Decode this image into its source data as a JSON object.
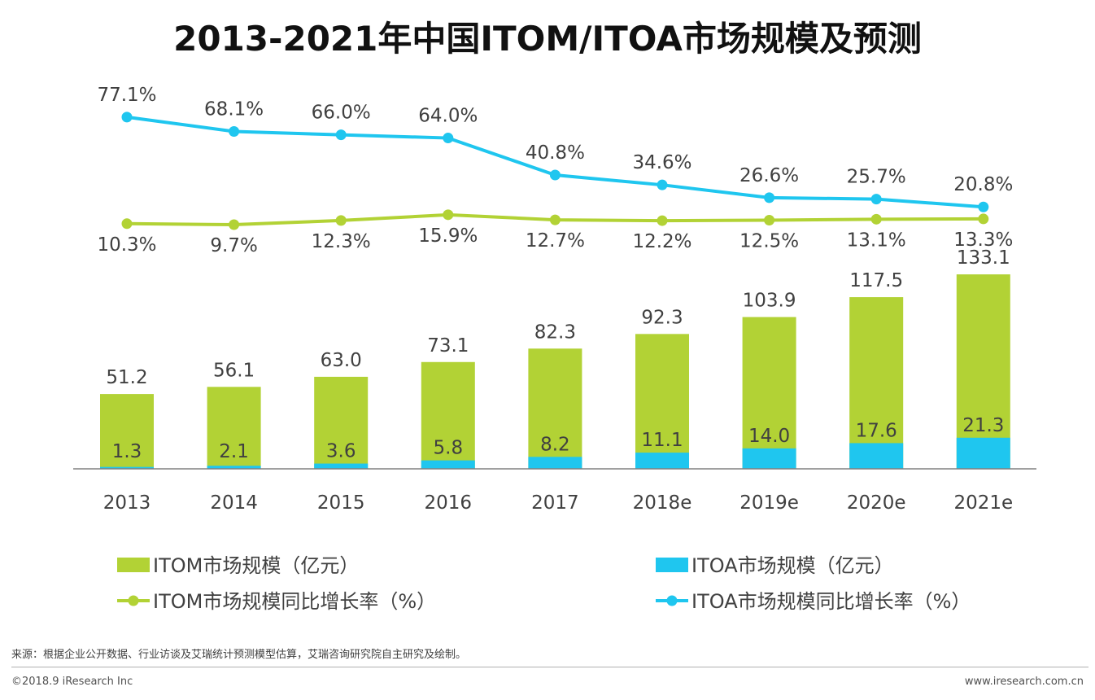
{
  "title": "2013-2021年中国ITOM/ITOA市场规模及预测",
  "source": "来源：根据企业公开数据、行业访谈及艾瑞统计预测模型估算，艾瑞咨询研究院自主研究及绘制。",
  "copyright": "©2018.9 iResearch Inc",
  "website": "www.iresearch.com.cn",
  "colors": {
    "itom": "#b2d235",
    "itoa": "#1fc6ef",
    "axis": "#808080",
    "text": "#404040"
  },
  "chart_data": {
    "type": "bar",
    "categories": [
      "2013",
      "2014",
      "2015",
      "2016",
      "2017",
      "2018e",
      "2019e",
      "2020e",
      "2021e"
    ],
    "bar_series": [
      {
        "name": "ITOM市场规模（亿元）",
        "values": [
          51.2,
          56.1,
          63.0,
          73.1,
          82.3,
          92.3,
          103.9,
          117.5,
          133.1
        ],
        "labels": [
          "51.2",
          "56.1",
          "63.0",
          "73.1",
          "82.3",
          "92.3",
          "103.9",
          "117.5",
          "133.1"
        ]
      },
      {
        "name": "ITOA市场规模（亿元）",
        "values": [
          1.3,
          2.1,
          3.6,
          5.8,
          8.2,
          11.1,
          14.0,
          17.6,
          21.3
        ],
        "labels": [
          "1.3",
          "2.1",
          "3.6",
          "5.8",
          "8.2",
          "11.1",
          "14.0",
          "17.6",
          "21.3"
        ]
      }
    ],
    "line_series": [
      {
        "name": "ITOM市场规模同比增长率（%）",
        "values": [
          10.3,
          9.7,
          12.3,
          15.9,
          12.7,
          12.2,
          12.5,
          13.1,
          13.3
        ],
        "labels": [
          "10.3%",
          "9.7%",
          "12.3%",
          "15.9%",
          "12.7%",
          "12.2%",
          "12.5%",
          "13.1%",
          "13.3%"
        ]
      },
      {
        "name": "ITOA市场规模同比增长率（%）",
        "values": [
          77.1,
          68.1,
          66.0,
          64.0,
          40.8,
          34.6,
          26.6,
          25.7,
          20.8
        ],
        "labels": [
          "77.1%",
          "68.1%",
          "66.0%",
          "64.0%",
          "40.8%",
          "34.6%",
          "26.6%",
          "25.7%",
          "20.8%"
        ]
      }
    ],
    "bar_layout": "overlapped",
    "legend_position": "bottom",
    "grid": false
  }
}
